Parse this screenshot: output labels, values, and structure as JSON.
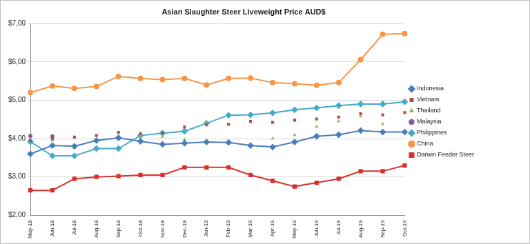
{
  "chart_data": {
    "type": "line",
    "title": "Asian Slaughter Steer Liveweight Price AUD$",
    "categories": [
      "May-18",
      "Jun-18",
      "Jul-18",
      "Aug-18",
      "Sep-18",
      "Oct-18",
      "Nov-18",
      "Dec-18",
      "Jan-19",
      "Feb-19",
      "Mar-19",
      "Apr-19",
      "May-19",
      "Jun-19",
      "Jul-19",
      "Aug-19",
      "Sep-19",
      "Oct-19"
    ],
    "series": [
      {
        "name": "Indonesia",
        "color": "#4a7ebb",
        "marker": "diamond",
        "line_style": "solid",
        "values": [
          3.6,
          3.82,
          3.8,
          3.95,
          4.02,
          3.93,
          3.85,
          3.88,
          3.91,
          3.9,
          3.82,
          3.78,
          3.91,
          4.06,
          4.1,
          4.21,
          4.17,
          4.17
        ]
      },
      {
        "name": "Vietnam",
        "color": "#be4b48",
        "marker": "square",
        "line_style": "none",
        "values": [
          3.95,
          4.0,
          4.04,
          4.08,
          4.16,
          4.13,
          4.15,
          4.3,
          4.36,
          4.37,
          4.45,
          4.42,
          4.48,
          4.51,
          4.56,
          4.65,
          4.62,
          4.68
        ]
      },
      {
        "name": "Thailand",
        "color": "#98b954",
        "marker": "triangle",
        "line_style": "none",
        "values": [
          3.95,
          3.95,
          3.76,
          3.97,
          4.0,
          4.05,
          4.05,
          3.98,
          4.4,
          4.37,
          null,
          4.0,
          4.09,
          4.31,
          4.45,
          4.58,
          4.38,
          4.21
        ]
      },
      {
        "name": "Malaysia",
        "color": "#7d60a0",
        "marker": "circle",
        "line_style": "none",
        "values": [
          4.07,
          4.06,
          null,
          null,
          null,
          null,
          null,
          null,
          null,
          null,
          null,
          null,
          null,
          null,
          null,
          null,
          null,
          null
        ]
      },
      {
        "name": "Philippines",
        "color": "#46aac5",
        "marker": "diamond",
        "line_style": "solid",
        "values": [
          3.92,
          3.55,
          3.55,
          3.74,
          3.74,
          4.08,
          4.14,
          4.19,
          4.4,
          4.61,
          4.62,
          4.67,
          4.75,
          4.8,
          4.86,
          4.9,
          4.9,
          4.96
        ]
      },
      {
        "name": "China",
        "color": "#f79646",
        "marker": "circle",
        "line_style": "solid",
        "values": [
          5.2,
          5.37,
          5.31,
          5.36,
          5.62,
          5.57,
          5.54,
          5.57,
          5.4,
          5.57,
          5.58,
          5.46,
          5.43,
          5.39,
          5.46,
          6.06,
          6.72,
          6.74
        ]
      },
      {
        "name": "Darwin Feeder Steer",
        "color": "#d9302b",
        "marker": "square",
        "line_style": "solid",
        "values": [
          2.65,
          2.65,
          2.95,
          3.0,
          3.02,
          3.05,
          3.05,
          3.25,
          3.25,
          3.25,
          3.05,
          2.9,
          2.75,
          2.85,
          2.95,
          3.15,
          3.15,
          3.3
        ]
      }
    ],
    "ylim": [
      2,
      7
    ],
    "yticks": [
      {
        "value": 2,
        "label": "$2,00"
      },
      {
        "value": 3,
        "label": "$3,00"
      },
      {
        "value": 4,
        "label": "$4,00"
      },
      {
        "value": 5,
        "label": "$5,00"
      },
      {
        "value": 6,
        "label": "$6,00"
      },
      {
        "value": 7,
        "label": "$7,00"
      }
    ],
    "grid": true,
    "legend": "right"
  }
}
